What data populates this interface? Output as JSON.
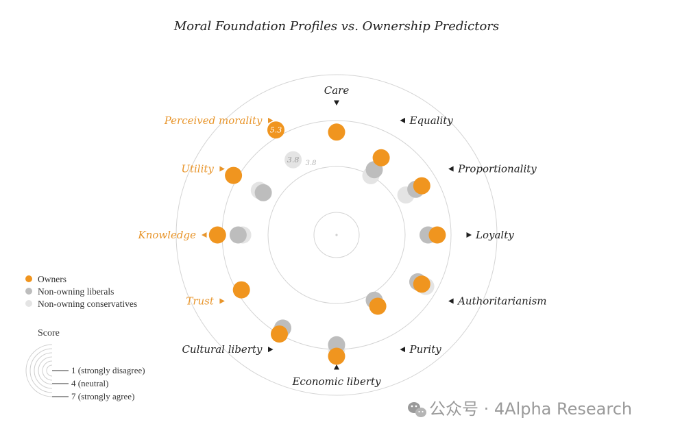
{
  "chart_data": {
    "type": "radial-scatter",
    "title": "Moral Foundation Profiles vs. Ownership Predictors",
    "scale": {
      "min": 1,
      "max": 7,
      "rings": [
        1,
        2,
        3,
        4,
        5,
        6,
        7
      ]
    },
    "axes": [
      {
        "name": "Care",
        "group": "moral"
      },
      {
        "name": "Equality",
        "group": "moral"
      },
      {
        "name": "Proportionality",
        "group": "moral"
      },
      {
        "name": "Loyalty",
        "group": "moral"
      },
      {
        "name": "Authoritarianism",
        "group": "moral"
      },
      {
        "name": "Purity",
        "group": "moral"
      },
      {
        "name": "Economic liberty",
        "group": "moral"
      },
      {
        "name": "Cultural liberty",
        "group": "moral"
      },
      {
        "name": "Trust",
        "group": "predictor"
      },
      {
        "name": "Knowledge",
        "group": "predictor"
      },
      {
        "name": "Utility",
        "group": "predictor"
      },
      {
        "name": "Perceived morality",
        "group": "predictor"
      }
    ],
    "series": [
      {
        "name": "Non-owning conservatives",
        "color": "#e4e4e4",
        "values": [
          null,
          3.0,
          3.5,
          4.0,
          4.5,
          null,
          5.0,
          4.8,
          null,
          4.1,
          3.9,
          3.8
        ]
      },
      {
        "name": "Non-owning liberals",
        "color": "#bdbdbd",
        "values": [
          null,
          3.3,
          4.0,
          4.0,
          4.1,
          3.3,
          4.8,
          4.7,
          null,
          4.3,
          3.7,
          null
        ]
      },
      {
        "name": "Owners",
        "color": "#f0951f",
        "values": [
          4.5,
          3.9,
          4.3,
          4.4,
          4.3,
          3.6,
          5.3,
          5.0,
          4.8,
          5.2,
          5.2,
          5.3
        ]
      }
    ],
    "data_labels": [
      {
        "series": "Owners",
        "axis": "Perceived morality",
        "text": "5.3"
      },
      {
        "series": "Non-owning conservatives",
        "axis": "Perceived morality",
        "text": "3.8"
      },
      {
        "series": "Non-owning conservatives",
        "axis": "Perceived morality",
        "text": "3.8",
        "variant": "faint"
      }
    ],
    "legend": {
      "placement": "left",
      "items": [
        "Owners",
        "Non-owning liberals",
        "Non-owning conservatives"
      ]
    },
    "scale_legend": {
      "title": "Score",
      "items": [
        "1 (strongly disagree)",
        "4 (neutral)",
        "7 (strongly agree)"
      ]
    },
    "colors": {
      "moral_label": "#1f1f1f",
      "predictor_label": "#e8952b",
      "ring": "#d4d4d4"
    }
  },
  "watermark": {
    "text": "公众号 · 4Alpha Research",
    "icon": "wechat-icon"
  }
}
